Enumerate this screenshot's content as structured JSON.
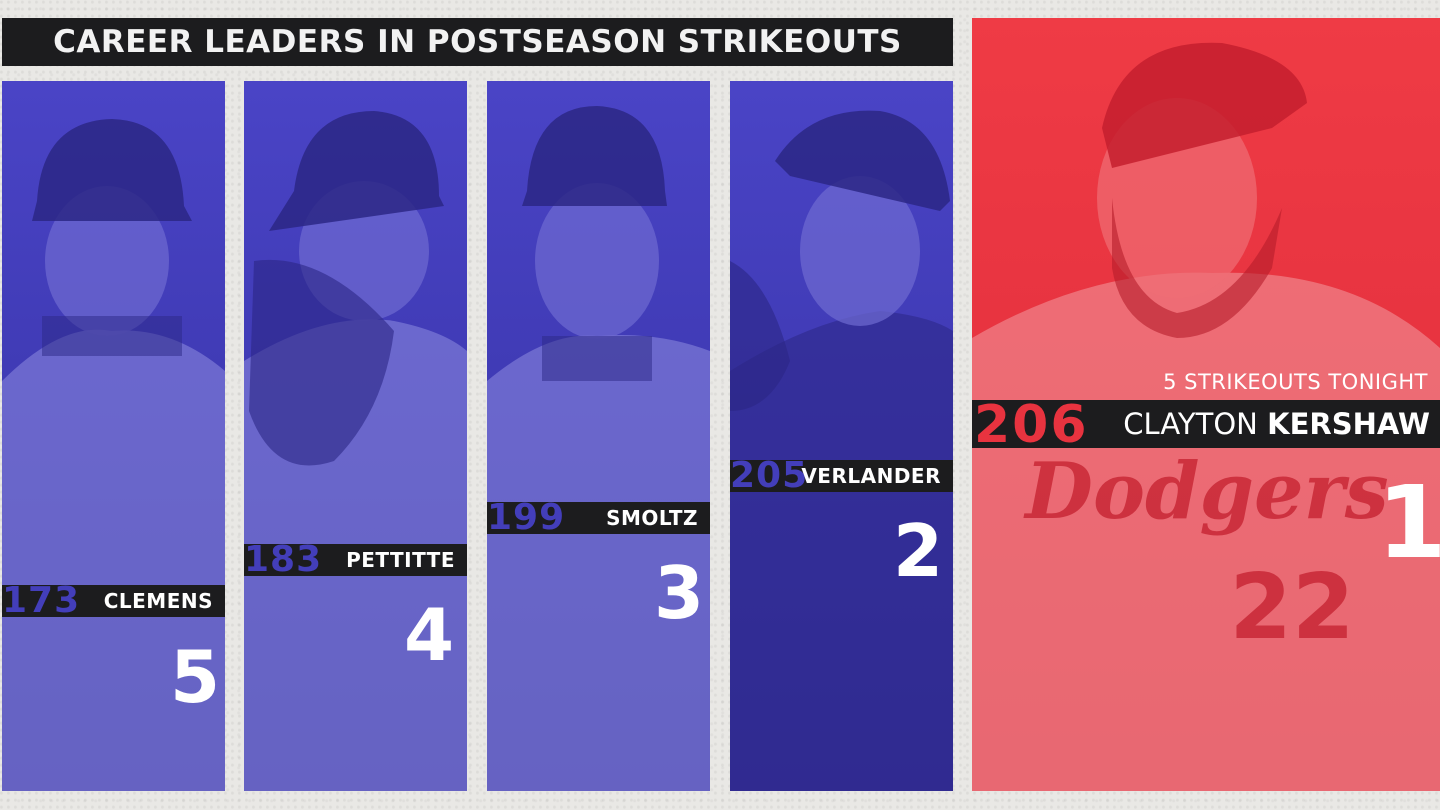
{
  "title": "CAREER LEADERS IN POSTSEASON STRIKEOUTS",
  "colors": {
    "panel_blue": "#433eba",
    "hero_red": "#e8333f",
    "bar_dark": "#1c1c1e"
  },
  "leaders": [
    {
      "rank": "5",
      "strikeouts": "173",
      "name": "CLEMENS"
    },
    {
      "rank": "4",
      "strikeouts": "183",
      "name": "PETTITTE"
    },
    {
      "rank": "3",
      "strikeouts": "199",
      "name": "SMOLTZ"
    },
    {
      "rank": "2",
      "strikeouts": "205",
      "name": "VERLANDER"
    }
  ],
  "hero": {
    "rank": "1",
    "strikeouts": "206",
    "first_name": "CLAYTON",
    "last_name": "KERSHAW",
    "subtitle": "5 STRIKEOUTS TONIGHT",
    "jersey_script": "Dodgers",
    "jersey_number": "22"
  }
}
